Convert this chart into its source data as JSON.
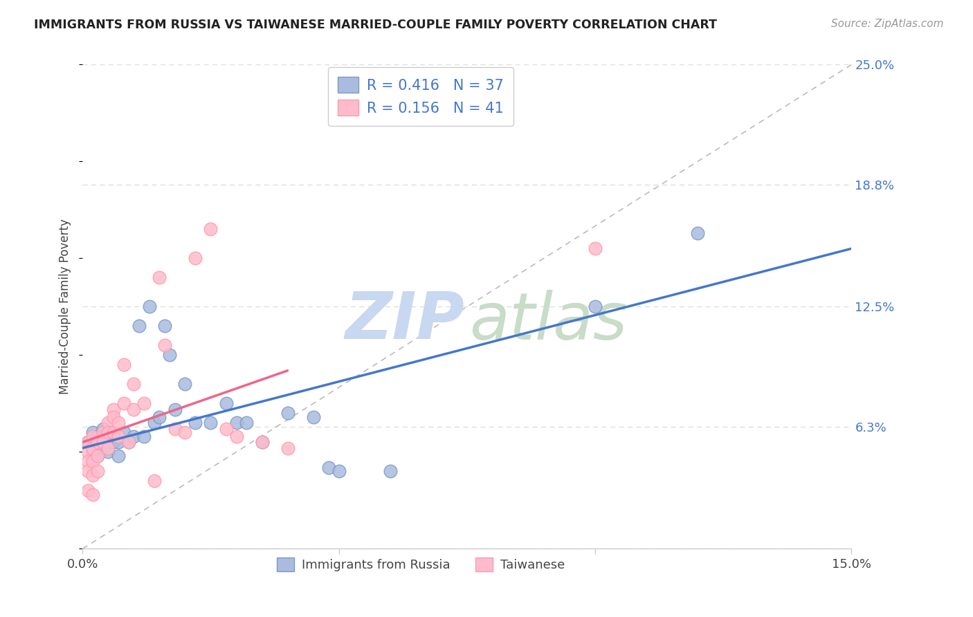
{
  "title": "IMMIGRANTS FROM RUSSIA VS TAIWANESE MARRIED-COUPLE FAMILY POVERTY CORRELATION CHART",
  "source": "Source: ZipAtlas.com",
  "ylabel": "Married-Couple Family Poverty",
  "x_min": 0.0,
  "x_max": 0.15,
  "y_min": 0.0,
  "y_max": 0.25,
  "y_tick_labels_right": [
    "",
    "6.3%",
    "12.5%",
    "18.8%",
    "25.0%"
  ],
  "y_tick_positions_right": [
    0.0,
    0.063,
    0.125,
    0.188,
    0.25
  ],
  "legend_label1": "Immigrants from Russia",
  "legend_label2": "Taiwanese",
  "R1": "0.416",
  "N1": "37",
  "R2": "0.156",
  "N2": "41",
  "color_blue_fill": "#AABBDD",
  "color_blue_edge": "#7799CC",
  "color_pink_fill": "#FFBBCC",
  "color_pink_edge": "#FF99AA",
  "color_blue_line": "#4477CC",
  "color_pink_line": "#EE6688",
  "color_diag": "#CCCCCC",
  "background_color": "#FFFFFF",
  "scatter_blue_x": [
    0.001,
    0.002,
    0.002,
    0.003,
    0.003,
    0.004,
    0.004,
    0.005,
    0.005,
    0.006,
    0.007,
    0.007,
    0.008,
    0.009,
    0.01,
    0.011,
    0.012,
    0.013,
    0.014,
    0.015,
    0.016,
    0.017,
    0.018,
    0.02,
    0.022,
    0.025,
    0.028,
    0.03,
    0.032,
    0.035,
    0.04,
    0.045,
    0.048,
    0.05,
    0.06,
    0.1,
    0.12
  ],
  "scatter_blue_y": [
    0.055,
    0.05,
    0.06,
    0.048,
    0.058,
    0.052,
    0.062,
    0.05,
    0.06,
    0.055,
    0.048,
    0.055,
    0.06,
    0.055,
    0.058,
    0.115,
    0.058,
    0.125,
    0.065,
    0.068,
    0.115,
    0.1,
    0.072,
    0.085,
    0.065,
    0.065,
    0.075,
    0.065,
    0.065,
    0.055,
    0.07,
    0.068,
    0.042,
    0.04,
    0.04,
    0.125,
    0.163
  ],
  "scatter_pink_x": [
    0.001,
    0.001,
    0.001,
    0.001,
    0.001,
    0.002,
    0.002,
    0.002,
    0.002,
    0.002,
    0.003,
    0.003,
    0.003,
    0.004,
    0.004,
    0.005,
    0.005,
    0.005,
    0.006,
    0.006,
    0.006,
    0.007,
    0.007,
    0.008,
    0.008,
    0.009,
    0.01,
    0.01,
    0.012,
    0.014,
    0.015,
    0.016,
    0.018,
    0.02,
    0.022,
    0.025,
    0.028,
    0.03,
    0.035,
    0.04,
    0.1
  ],
  "scatter_pink_y": [
    0.055,
    0.05,
    0.045,
    0.04,
    0.03,
    0.058,
    0.052,
    0.045,
    0.038,
    0.028,
    0.055,
    0.048,
    0.04,
    0.06,
    0.055,
    0.065,
    0.06,
    0.052,
    0.072,
    0.068,
    0.06,
    0.065,
    0.058,
    0.095,
    0.075,
    0.055,
    0.085,
    0.072,
    0.075,
    0.035,
    0.14,
    0.105,
    0.062,
    0.06,
    0.15,
    0.165,
    0.062,
    0.058,
    0.055,
    0.052,
    0.155
  ],
  "blue_line_x": [
    0.0,
    0.15
  ],
  "blue_line_y": [
    0.052,
    0.155
  ],
  "pink_line_x": [
    0.0,
    0.04
  ],
  "pink_line_y": [
    0.055,
    0.092
  ]
}
